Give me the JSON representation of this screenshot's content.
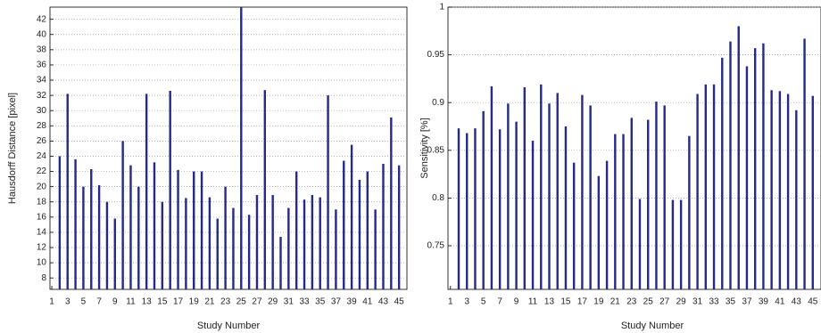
{
  "chart_data": [
    {
      "type": "bar",
      "ylabel": "Hausdorff Distance [pixel]",
      "xlabel": "Study Number",
      "x": [
        1,
        2,
        3,
        4,
        5,
        6,
        7,
        8,
        9,
        10,
        11,
        12,
        13,
        14,
        15,
        16,
        17,
        18,
        19,
        20,
        21,
        22,
        23,
        24,
        25,
        26,
        27,
        28,
        29,
        30,
        31,
        32,
        33,
        34,
        35,
        36,
        37,
        38,
        39,
        40,
        41,
        42,
        43,
        44,
        45
      ],
      "values": [
        null,
        24,
        32.2,
        23.6,
        20,
        22.3,
        20.2,
        18,
        15.8,
        26,
        22.8,
        20,
        32.2,
        23.2,
        18,
        32.6,
        22.2,
        18.5,
        22,
        22,
        18.6,
        15.8,
        20,
        17.2,
        43.6,
        16.3,
        18.9,
        32.7,
        18.9,
        13.4,
        17.2,
        22,
        18.3,
        18.9,
        18.6,
        32,
        17,
        23.4,
        25.5,
        20.9,
        22,
        17,
        23,
        29.1,
        22.8
      ],
      "color": "#24298a",
      "xlim": [
        0.77,
        46
      ],
      "ylim": [
        6.5,
        43.6
      ],
      "xticks": [
        1,
        3,
        5,
        7,
        9,
        11,
        13,
        15,
        17,
        19,
        21,
        23,
        25,
        27,
        29,
        31,
        33,
        35,
        37,
        39,
        41,
        43,
        45
      ],
      "yticks": [
        8,
        10,
        12,
        14,
        16,
        18,
        20,
        22,
        24,
        26,
        28,
        30,
        32,
        34,
        36,
        38,
        40,
        42
      ],
      "grid": true
    },
    {
      "type": "bar",
      "ylabel": "Sensitivity [%]",
      "xlabel": "Study Number",
      "x": [
        1,
        2,
        3,
        4,
        5,
        6,
        7,
        8,
        9,
        10,
        11,
        12,
        13,
        14,
        15,
        16,
        17,
        18,
        19,
        20,
        21,
        22,
        23,
        24,
        25,
        26,
        27,
        28,
        29,
        30,
        31,
        32,
        33,
        34,
        35,
        36,
        37,
        38,
        39,
        40,
        41,
        42,
        43,
        44,
        45
      ],
      "values": [
        null,
        0.873,
        0.868,
        0.873,
        0.891,
        0.917,
        0.872,
        0.899,
        0.88,
        0.916,
        0.86,
        0.919,
        0.899,
        0.91,
        0.875,
        0.837,
        0.908,
        0.897,
        0.823,
        0.839,
        0.867,
        0.867,
        0.884,
        0.799,
        0.882,
        0.901,
        0.897,
        0.798,
        0.798,
        0.865,
        0.909,
        0.919,
        0.919,
        0.947,
        0.964,
        0.98,
        0.938,
        0.957,
        0.962,
        0.913,
        0.912,
        0.909,
        0.892,
        0.967,
        0.907
      ],
      "color": "#24298a",
      "xlim": [
        0.7,
        46
      ],
      "ylim": [
        0.7043,
        1
      ],
      "xticks": [
        1,
        3,
        5,
        7,
        9,
        11,
        13,
        15,
        17,
        19,
        21,
        23,
        25,
        27,
        29,
        31,
        33,
        35,
        37,
        39,
        41,
        43,
        45
      ],
      "yticks": [
        0.75,
        0.8,
        0.85,
        0.9,
        0.95,
        1
      ],
      "grid": true
    }
  ]
}
